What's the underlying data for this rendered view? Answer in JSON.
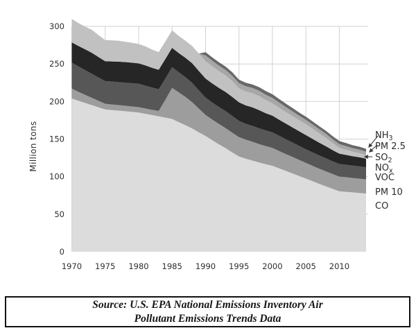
{
  "chart_data": {
    "type": "area",
    "stacked": true,
    "title": "",
    "ylabel": "Million tons",
    "xlim": [
      1970,
      2014
    ],
    "ylim": [
      0,
      300
    ],
    "grid": true,
    "legend_position": "right",
    "x": [
      1970,
      1971,
      1972,
      1973,
      1974,
      1975,
      1976,
      1977,
      1978,
      1979,
      1980,
      1981,
      1982,
      1983,
      1984,
      1985,
      1986,
      1987,
      1988,
      1989,
      1990,
      1991,
      1992,
      1993,
      1994,
      1995,
      1996,
      1997,
      1998,
      1999,
      2000,
      2001,
      2002,
      2003,
      2004,
      2005,
      2006,
      2007,
      2008,
      2009,
      2010,
      2011,
      2012,
      2013,
      2014
    ],
    "x_ticks": [
      1970,
      1975,
      1980,
      1985,
      1990,
      1995,
      2000,
      2005,
      2010
    ],
    "y_ticks": [
      0,
      50,
      100,
      150,
      200,
      250,
      300
    ],
    "series": [
      {
        "name": "CO",
        "color": "#dcdcdc",
        "values": [
          204.0,
          201.0,
          198.0,
          195.2,
          192.3,
          189.4,
          188.6,
          187.8,
          187.0,
          186.2,
          185.4,
          183.6,
          181.9,
          180.2,
          178.5,
          176.8,
          172.5,
          168.5,
          164.0,
          159.0,
          154.2,
          148.5,
          143.0,
          137.9,
          132.3,
          126.8,
          124.0,
          121.4,
          118.9,
          116.6,
          114.5,
          111.0,
          107.6,
          104.2,
          100.8,
          97.4,
          93.9,
          90.4,
          87.0,
          83.7,
          80.6,
          79.8,
          79.0,
          78.2,
          77.5
        ]
      },
      {
        "name": "PM 10",
        "color": "#9d9d9d",
        "values": [
          13.1,
          11.9,
          10.8,
          9.7,
          8.6,
          7.6,
          7.5,
          7.4,
          7.3,
          7.2,
          7.1,
          7.1,
          7.0,
          7.2,
          24.0,
          41.3,
          39.5,
          37.5,
          35.0,
          31.5,
          27.8,
          27.4,
          27.0,
          26.6,
          26.2,
          25.8,
          25.4,
          25.0,
          24.5,
          24.1,
          23.7,
          23.1,
          22.5,
          22.0,
          21.4,
          20.8,
          20.5,
          20.2,
          20.0,
          19.7,
          19.5,
          19.4,
          19.2,
          19.1,
          18.9
        ]
      },
      {
        "name": "VOC",
        "color": "#575757",
        "values": [
          34.7,
          33.8,
          33.0,
          32.0,
          31.1,
          30.2,
          30.4,
          30.6,
          30.7,
          30.9,
          31.1,
          30.4,
          29.6,
          28.9,
          28.2,
          27.5,
          26.9,
          26.4,
          25.8,
          24.4,
          23.1,
          22.8,
          22.6,
          22.7,
          22.3,
          21.6,
          20.9,
          21.1,
          20.9,
          20.8,
          20.7,
          20.2,
          19.7,
          19.2,
          18.7,
          18.2,
          17.9,
          17.6,
          17.3,
          17.0,
          16.8,
          16.6,
          16.5,
          16.3,
          16.1
        ]
      },
      {
        "name": "NOx",
        "color": "#262626",
        "values": [
          26.9,
          27.2,
          27.6,
          27.9,
          27.1,
          26.4,
          26.8,
          27.2,
          27.5,
          27.3,
          27.1,
          26.9,
          26.3,
          25.9,
          26.0,
          25.8,
          25.5,
          25.7,
          26.0,
          25.7,
          25.5,
          25.4,
          25.4,
          25.5,
          25.2,
          24.7,
          24.6,
          24.7,
          24.3,
          22.9,
          22.3,
          21.5,
          20.9,
          20.1,
          19.5,
          19.0,
          18.0,
          17.0,
          16.1,
          14.8,
          13.7,
          13.1,
          12.5,
          12.2,
          11.4
        ]
      },
      {
        "name": "SO2",
        "color": "#c1c1c1",
        "values": [
          31.2,
          30.5,
          30.2,
          30.6,
          29.3,
          28.0,
          28.1,
          27.9,
          26.9,
          26.4,
          25.9,
          25.4,
          24.3,
          23.6,
          23.4,
          23.3,
          22.9,
          22.8,
          23.0,
          23.1,
          23.1,
          22.8,
          22.4,
          22.1,
          21.2,
          18.6,
          18.5,
          18.8,
          18.7,
          17.5,
          16.3,
          15.8,
          15.3,
          15.0,
          14.7,
          14.5,
          13.5,
          12.4,
          11.3,
          9.4,
          7.8,
          6.9,
          5.9,
          5.4,
          4.7
        ]
      },
      {
        "name": "PM 2.5",
        "color": "#a7a7a7",
        "values": [
          null,
          null,
          null,
          null,
          null,
          null,
          null,
          null,
          null,
          null,
          null,
          null,
          null,
          null,
          null,
          null,
          null,
          null,
          null,
          null,
          7.6,
          7.5,
          7.4,
          7.3,
          7.1,
          7.0,
          7.0,
          7.1,
          7.1,
          7.2,
          7.3,
          7.0,
          6.7,
          6.4,
          6.1,
          5.8,
          5.6,
          5.5,
          5.3,
          5.2,
          5.0,
          4.9,
          4.8,
          4.7,
          4.6
        ]
      },
      {
        "name": "NH3",
        "color": "#686868",
        "values": [
          null,
          null,
          null,
          null,
          null,
          null,
          null,
          null,
          null,
          null,
          null,
          null,
          null,
          null,
          null,
          null,
          null,
          null,
          null,
          null,
          4.3,
          4.3,
          4.4,
          4.4,
          4.5,
          4.5,
          4.6,
          4.6,
          4.7,
          4.8,
          4.8,
          4.7,
          4.5,
          4.4,
          4.2,
          4.1,
          4.1,
          4.0,
          4.0,
          4.0,
          4.0,
          4.0,
          3.9,
          3.9,
          3.8
        ]
      }
    ]
  },
  "legend": {
    "items": [
      {
        "text": "NH",
        "sub": "3"
      },
      {
        "text": "PM 2.5",
        "sub": ""
      },
      {
        "text": "SO",
        "sub": "2"
      },
      {
        "text": "NO",
        "sub": "x"
      },
      {
        "text": "VOC",
        "sub": ""
      },
      {
        "text": "PM 10",
        "sub": ""
      },
      {
        "text": "CO",
        "sub": ""
      }
    ]
  },
  "source": {
    "line1": "Source: U.S. EPA National Emissions Inventory Air",
    "line2": "Pollutant Emissions Trends Data"
  }
}
